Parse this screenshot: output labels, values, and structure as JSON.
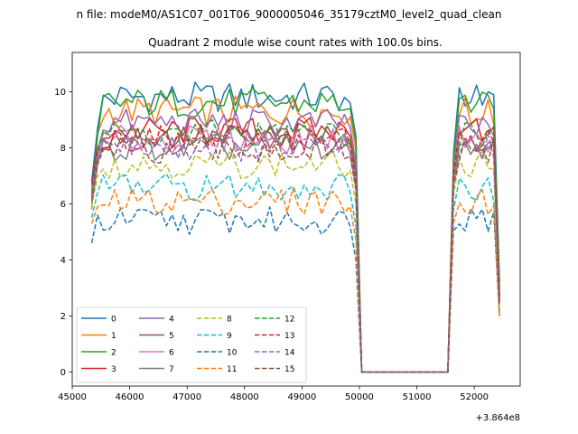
{
  "chart_data": {
    "type": "line",
    "suptitle": "n file: modeM0/AS1C07_001T06_9000005046_35179cztM0_level2_quad_clean",
    "title": "Quadrant 2 module wise count rates with 100.0s bins.",
    "xlabel": "",
    "ylabel": "",
    "x_offset_label": "+3.864e8",
    "xlim": [
      45000,
      52800
    ],
    "ylim": [
      -0.5,
      11.4
    ],
    "xticks": [
      45000,
      46000,
      47000,
      48000,
      49000,
      50000,
      51000,
      52000
    ],
    "yticks": [
      0,
      2,
      4,
      6,
      8,
      10
    ],
    "grid": false,
    "legend": {
      "position": "lower-left",
      "columns": 4
    },
    "gti_segments": [
      [
        45340,
        49940
      ],
      [
        51640,
        52440
      ]
    ],
    "gap_x": [
      50040,
      50140,
      51440,
      51540
    ],
    "series": [
      {
        "name": "0",
        "color": "#1f77b4",
        "dash": "solid",
        "mean": 9.8,
        "edge": [
          6.8,
          8.7
        ],
        "end2": 3.2
      },
      {
        "name": "1",
        "color": "#ff7f0e",
        "dash": "solid",
        "mean": 9.3,
        "edge": [
          5.8,
          8.5
        ],
        "end2": 2.9
      },
      {
        "name": "2",
        "color": "#2ca02c",
        "dash": "solid",
        "mean": 9.6,
        "edge": [
          6.3,
          8.4
        ],
        "end2": 3.0
      },
      {
        "name": "3",
        "color": "#d62728",
        "dash": "solid",
        "mean": 8.6,
        "edge": [
          6.6,
          8.0
        ],
        "end2": 2.7
      },
      {
        "name": "4",
        "color": "#9467bd",
        "dash": "solid",
        "mean": 8.9,
        "edge": [
          6.4,
          7.9
        ],
        "end2": 2.8
      },
      {
        "name": "5",
        "color": "#8c564b",
        "dash": "solid",
        "mean": 8.4,
        "edge": [
          6.2,
          7.6
        ],
        "end2": 2.6
      },
      {
        "name": "6",
        "color": "#e377c2",
        "dash": "solid",
        "mean": 8.3,
        "edge": [
          6.5,
          7.7
        ],
        "end2": 2.6
      },
      {
        "name": "7",
        "color": "#7f7f7f",
        "dash": "solid",
        "mean": 8.0,
        "edge": [
          6.0,
          7.4
        ],
        "end2": 2.5
      },
      {
        "name": "8",
        "color": "#bcbd22",
        "dash": "dashed",
        "mean": 7.4,
        "edge": [
          5.9,
          7.0
        ],
        "end2": 2.3
      },
      {
        "name": "9",
        "color": "#17becf",
        "dash": "dashed",
        "mean": 6.6,
        "edge": [
          5.5,
          6.4
        ],
        "end2": 2.1
      },
      {
        "name": "10",
        "color": "#1f77b4",
        "dash": "dashed",
        "mean": 5.4,
        "edge": [
          4.6,
          5.6
        ],
        "end2": 2.0
      },
      {
        "name": "11",
        "color": "#ff7f0e",
        "dash": "dashed",
        "mean": 6.1,
        "edge": [
          5.3,
          5.9
        ],
        "end2": 1.9
      },
      {
        "name": "12",
        "color": "#2ca02c",
        "dash": "dashed",
        "mean": 8.5,
        "edge": [
          6.4,
          7.8
        ],
        "end2": 2.7
      },
      {
        "name": "13",
        "color": "#d62728",
        "dash": "dashed",
        "mean": 8.3,
        "edge": [
          6.7,
          7.9
        ],
        "end2": 2.6
      },
      {
        "name": "14",
        "color": "#9467bd",
        "dash": "dashed",
        "mean": 8.0,
        "edge": [
          6.3,
          7.5
        ],
        "end2": 2.5
      },
      {
        "name": "15",
        "color": "#8c564b",
        "dash": "dashed",
        "mean": 7.9,
        "edge": [
          6.1,
          7.4
        ],
        "end2": 2.4
      }
    ]
  }
}
